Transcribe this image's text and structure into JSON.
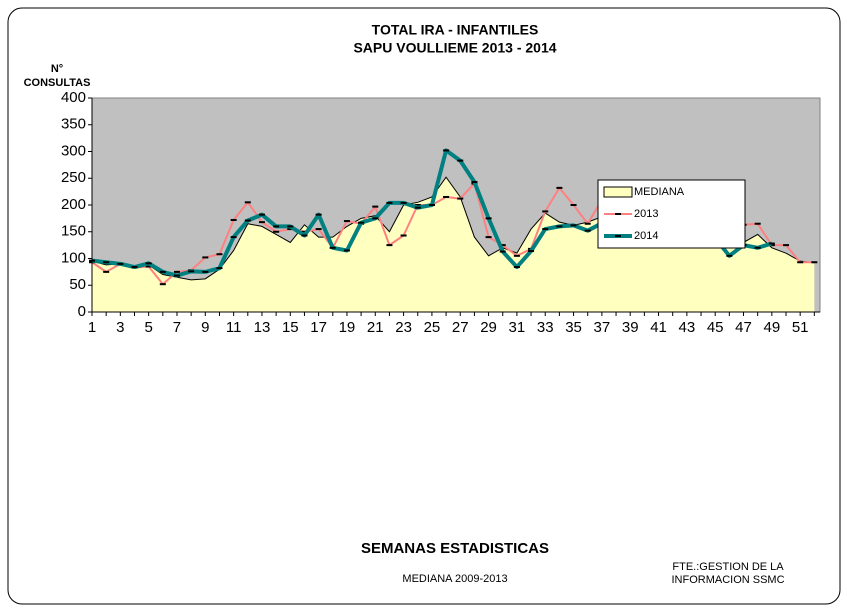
{
  "chart_data": {
    "type": "line",
    "title": [
      "TOTAL IRA -  INFANTILES",
      "SAPU VOULLIEME   2013 - 2014"
    ],
    "y_label": [
      "N°",
      "CONSULTAS"
    ],
    "x_label": "SEMANAS ESTADISTICAS",
    "annotations": [
      "MEDIANA 2009-2013",
      "FTE.:GESTION DE LA",
      "INFORMACION  SSMC"
    ],
    "x": [
      1,
      2,
      3,
      4,
      5,
      6,
      7,
      8,
      9,
      10,
      11,
      12,
      13,
      14,
      15,
      16,
      17,
      18,
      19,
      20,
      21,
      22,
      23,
      24,
      25,
      26,
      27,
      28,
      29,
      30,
      31,
      32,
      33,
      34,
      35,
      36,
      37,
      38,
      39,
      40,
      41,
      42,
      43,
      44,
      45,
      46,
      47,
      48,
      49,
      50,
      51,
      52
    ],
    "xlim": [
      1,
      52.4
    ],
    "xticks": [
      1,
      3,
      5,
      7,
      9,
      11,
      13,
      15,
      17,
      19,
      21,
      23,
      25,
      27,
      29,
      31,
      33,
      35,
      37,
      39,
      41,
      43,
      45,
      47,
      49,
      51
    ],
    "ylim": [
      0,
      400
    ],
    "yticks": [
      0,
      50,
      100,
      150,
      200,
      250,
      300,
      350,
      400
    ],
    "plot_background": "#c0c0c0",
    "legend_position": "upper right",
    "series": [
      {
        "name": "MEDIANA",
        "style": "area",
        "color": "#ffffc0",
        "line_color": "#000000",
        "values": [
          95,
          88,
          90,
          85,
          88,
          70,
          65,
          60,
          62,
          80,
          115,
          165,
          160,
          145,
          130,
          163,
          140,
          140,
          160,
          175,
          180,
          150,
          200,
          205,
          215,
          252,
          215,
          140,
          105,
          120,
          110,
          155,
          185,
          168,
          162,
          168,
          178,
          175,
          140,
          132,
          150,
          130,
          160,
          150,
          140,
          155,
          130,
          145,
          120,
          110,
          95,
          92
        ]
      },
      {
        "name": "2013",
        "style": "line",
        "color": "#ff8080",
        "values": [
          93,
          75,
          90,
          83,
          85,
          52,
          75,
          78,
          102,
          108,
          172,
          205,
          168,
          150,
          155,
          150,
          155,
          120,
          170,
          165,
          197,
          125,
          143,
          200,
          200,
          215,
          212,
          240,
          140,
          125,
          105,
          118,
          188,
          232,
          200,
          165,
          210,
          180,
          150,
          135,
          155,
          183,
          162,
          158,
          160,
          160,
          163,
          165,
          125,
          125,
          93,
          93
        ]
      },
      {
        "name": "2014",
        "style": "line",
        "color": "#008080",
        "values": [
          96,
          93,
          90,
          84,
          91,
          75,
          68,
          76,
          75,
          82,
          140,
          171,
          182,
          160,
          160,
          143,
          182,
          120,
          115,
          167,
          175,
          204,
          204,
          195,
          200,
          302,
          283,
          243,
          175,
          113,
          84,
          114,
          155,
          160,
          162,
          152,
          166,
          141,
          203,
          151,
          154,
          132,
          136,
          136,
          138,
          105,
          125,
          120,
          128,
          null,
          null,
          null
        ]
      }
    ]
  }
}
